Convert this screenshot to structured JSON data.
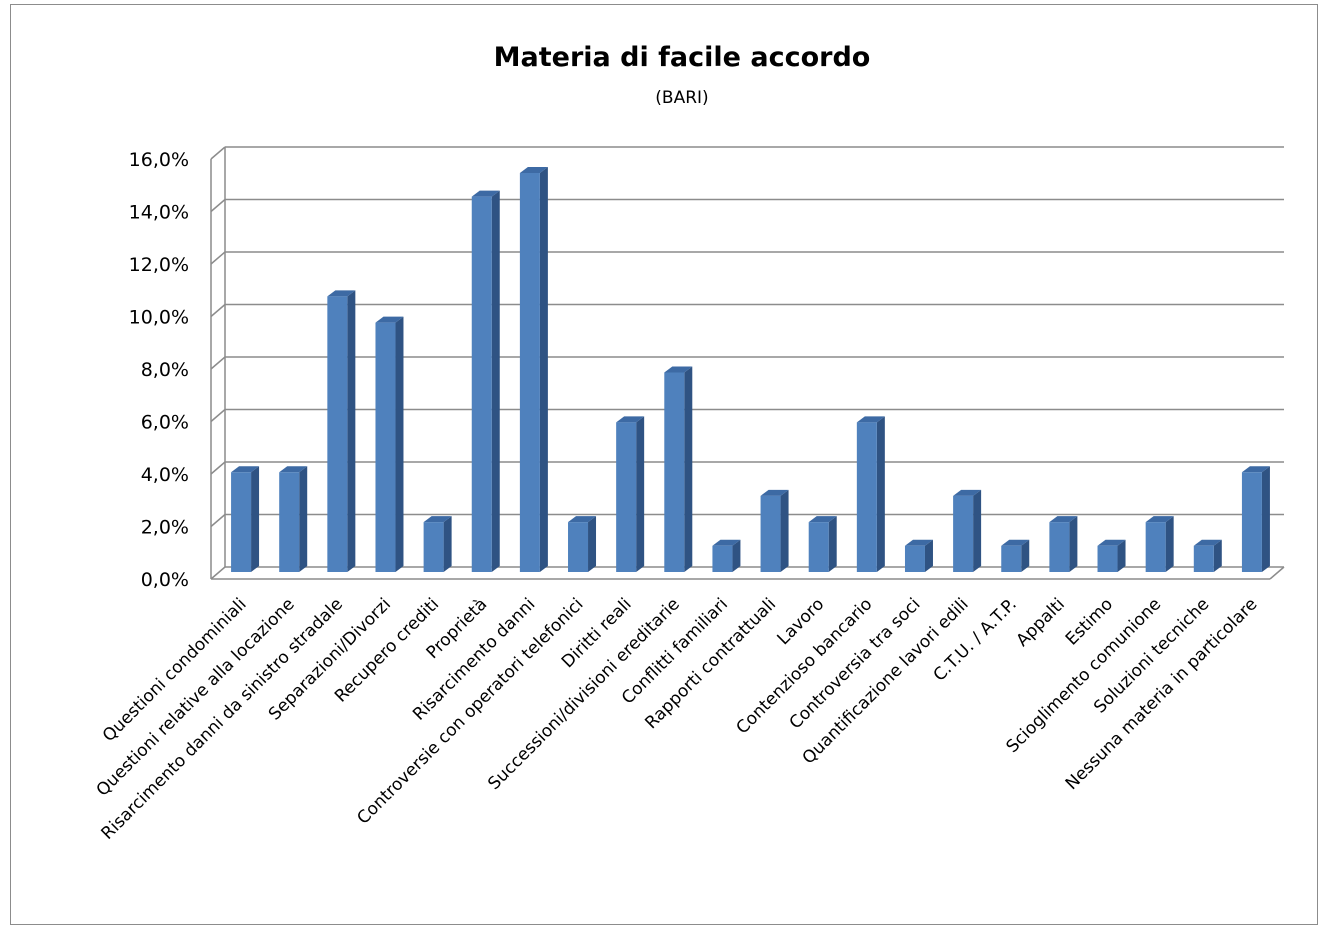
{
  "chart_data": {
    "type": "bar",
    "title": "Materia di facile accordo",
    "subtitle": "(BARI)",
    "xlabel": "",
    "ylabel": "",
    "ylim": [
      0,
      16
    ],
    "y_unit": "%",
    "y_ticks": [
      "0,0%",
      "2,0%",
      "4,0%",
      "6,0%",
      "8,0%",
      "10,0%",
      "12,0%",
      "14,0%",
      "16,0%"
    ],
    "grid": true,
    "legend": "none",
    "bar_color": "#4f81bd",
    "categories": [
      "Questioni condominiali",
      "Questioni relative alla locazione",
      "Risarcimento danni da sinistro stradale",
      "Separazioni/Divorzi",
      "Recupero crediti",
      "Proprietà",
      "Risarcimento danni",
      "Controversie con operatori telefonici",
      "Diritti reali",
      "Successioni/divisioni ereditarie",
      "Conflitti familiari",
      "Rapporti contrattuali",
      "Lavoro",
      "Contenzioso bancario",
      "Controversia tra soci",
      "Quantificazione lavori edili",
      "C.T.U. / A.T.P.",
      "Appalti",
      "Estimo",
      "Scioglimento comunione",
      "Soluzioni tecniche",
      "Nessuna materia in particolare"
    ],
    "values": [
      3.8,
      3.8,
      10.5,
      9.5,
      1.9,
      14.3,
      15.2,
      1.9,
      5.7,
      7.6,
      1.0,
      2.9,
      1.9,
      5.7,
      1.0,
      2.9,
      1.0,
      1.9,
      1.0,
      1.9,
      1.0,
      3.8
    ]
  }
}
